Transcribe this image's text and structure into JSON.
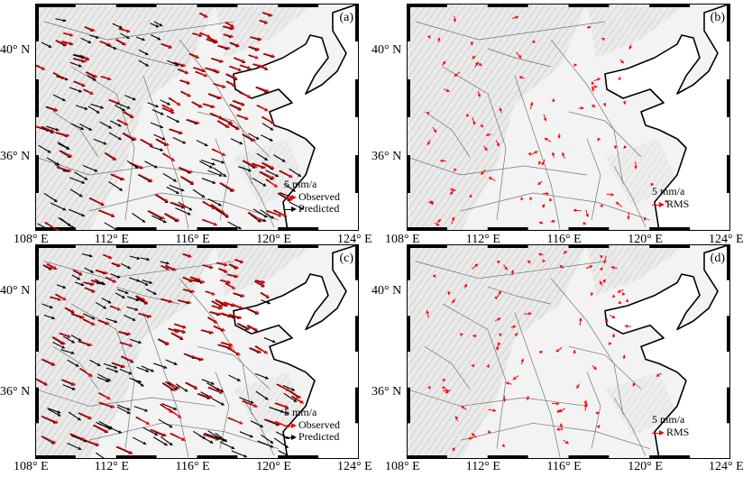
{
  "panels": [
    {
      "id": "a",
      "label": "(a)",
      "scale": "5 mm/a",
      "legend": [
        {
          "label": "Observed",
          "color": "#ff0000"
        },
        {
          "label": "Predicted",
          "color": "#000000"
        }
      ]
    },
    {
      "id": "b",
      "label": "(b)",
      "scale": "5 mm/a",
      "legend": [
        {
          "label": "RMS",
          "color": "#ff0000"
        }
      ]
    },
    {
      "id": "c",
      "label": "(c)",
      "scale": "5 mm/a",
      "legend": [
        {
          "label": "Observed",
          "color": "#ff0000"
        },
        {
          "label": "Predicted",
          "color": "#000000"
        }
      ]
    },
    {
      "id": "d",
      "label": "(d)",
      "scale": "5 mm/a",
      "legend": [
        {
          "label": "RMS",
          "color": "#ff0000"
        }
      ]
    }
  ],
  "lat_labels": [
    "40° N",
    "36° N"
  ],
  "lon_labels": [
    "108° E",
    "112° E",
    "116° E",
    "120° E",
    "124° E"
  ],
  "colors": {
    "observed": "#ff0000",
    "predicted": "#000000",
    "fault": "#555555",
    "coast": "#000000"
  }
}
